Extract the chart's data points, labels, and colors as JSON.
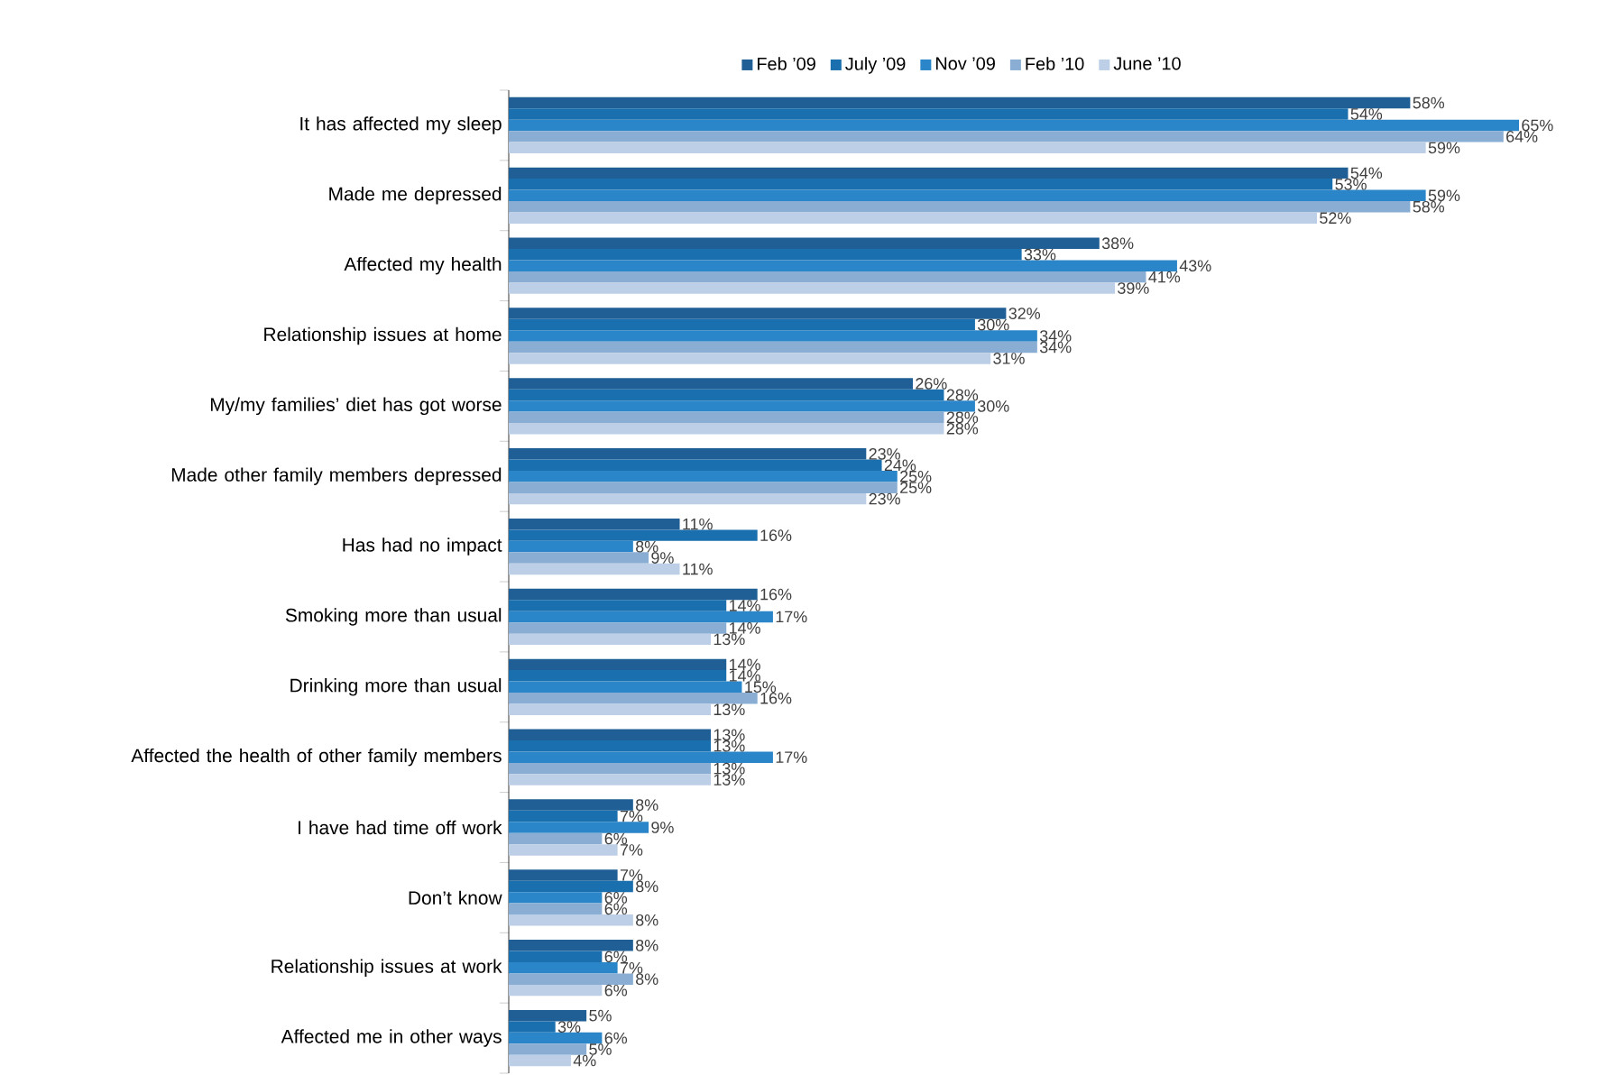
{
  "chart_data": {
    "type": "bar",
    "orientation": "horizontal",
    "legend": "top",
    "categories": [
      "It has affected my sleep",
      "Made me depressed",
      "Affected my health",
      "Relationship issues at home",
      "My/my families’ diet has got worse",
      "Made other family members depressed",
      "Has had no impact",
      "Smoking more than usual",
      "Drinking more than usual",
      "Affected the health of other family members",
      "I have had time off work",
      "Don’t know",
      "Relationship issues at work",
      "Affected me in other ways"
    ],
    "series": [
      {
        "name": "Feb ’09",
        "color": "#1f5f95",
        "values": [
          58,
          54,
          38,
          32,
          26,
          23,
          11,
          16,
          14,
          13,
          8,
          7,
          8,
          5
        ],
        "value_labels": [
          "58%",
          "54%",
          "38%",
          "32%",
          "26%",
          "23%",
          "11%",
          "16%",
          "14%",
          "13%",
          "8%",
          "7%",
          "8%",
          "5%"
        ]
      },
      {
        "name": "July ’09",
        "color": "#1a6fae",
        "values": [
          54,
          53,
          33,
          30,
          28,
          24,
          16,
          14,
          14,
          13,
          7,
          8,
          6,
          3
        ],
        "value_labels": [
          "54%",
          "53%",
          "33%",
          "30%",
          "28%",
          "24%",
          "16%",
          "14%",
          "14%",
          "13%",
          "7%",
          "8%",
          "6%",
          "3%"
        ]
      },
      {
        "name": "Nov ’09",
        "color": "#2a86c8",
        "values": [
          65,
          59,
          43,
          34,
          30,
          25,
          8,
          17,
          15,
          17,
          9,
          6,
          7,
          6
        ],
        "value_labels": [
          "65%",
          "59%",
          "43%",
          "34%",
          "30%",
          "25%",
          "8%",
          "17%",
          "15%",
          "17%",
          "9%",
          "6%",
          "7%",
          "6%"
        ]
      },
      {
        "name": "Feb ’10",
        "color": "#8aaed3",
        "values": [
          64,
          58,
          41,
          34,
          28,
          25,
          9,
          14,
          16,
          13,
          6,
          6,
          8,
          5
        ],
        "value_labels": [
          "64%",
          "58%",
          "41%",
          "34%",
          "28%",
          "25%",
          "9%",
          "14%",
          "16%",
          "13%",
          "6%",
          "6%",
          "8%",
          "5%"
        ]
      },
      {
        "name": "June ’10",
        "color": "#bccfe7",
        "values": [
          59,
          52,
          39,
          31,
          28,
          23,
          11,
          13,
          13,
          13,
          7,
          8,
          6,
          4
        ],
        "value_labels": [
          "59%",
          "52%",
          "39%",
          "31%",
          "28%",
          "23%",
          "11%",
          "13%",
          "13%",
          "13%",
          "7%",
          "8%",
          "6%",
          "4%"
        ]
      }
    ]
  }
}
